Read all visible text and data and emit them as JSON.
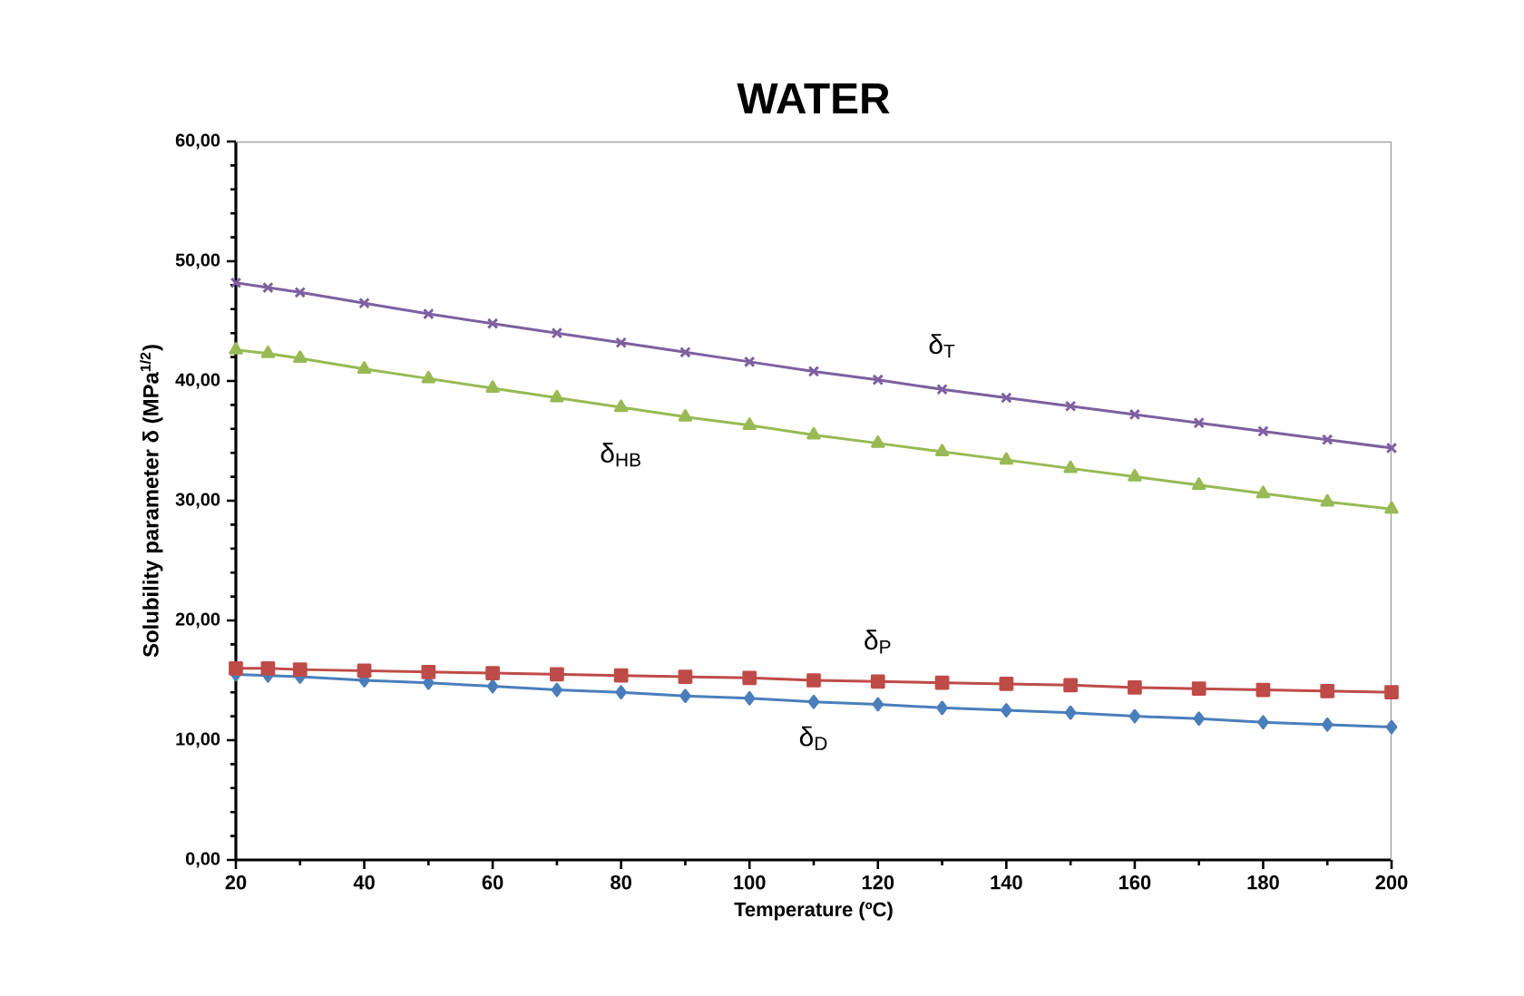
{
  "chart_data": {
    "type": "line",
    "title": "WATER",
    "xlabel": "Temperature (ºC)",
    "ylabel": "Solubility parameter  δ (MPa$^{1/2}$)",
    "x": [
      20,
      25,
      30,
      40,
      50,
      60,
      70,
      80,
      90,
      100,
      110,
      120,
      130,
      140,
      150,
      160,
      170,
      180,
      190,
      200
    ],
    "xlim": [
      20,
      200
    ],
    "xticks": [
      20,
      40,
      60,
      80,
      100,
      120,
      140,
      160,
      180,
      200
    ],
    "ylim": [
      0,
      60
    ],
    "yticks": [
      {
        "value": 0,
        "label": "0,00"
      },
      {
        "value": 10,
        "label": "10,00"
      },
      {
        "value": 20,
        "label": "20,00"
      },
      {
        "value": 30,
        "label": "30,00"
      },
      {
        "value": 40,
        "label": "40,00"
      },
      {
        "value": 50,
        "label": "50,00"
      },
      {
        "value": 60,
        "label": "60,00"
      }
    ],
    "grid": false,
    "line_style": "solid",
    "series": [
      {
        "name": "δ$_{D}$",
        "color": "#4a7ebb",
        "marker": "diamond",
        "values": [
          15.5,
          15.4,
          15.3,
          15.0,
          14.8,
          14.5,
          14.2,
          14.0,
          13.7,
          13.5,
          13.2,
          13.0,
          12.7,
          12.5,
          12.3,
          12.0,
          11.8,
          11.5,
          11.3,
          11.1
        ]
      },
      {
        "name": "δ$_{P}$",
        "color": "#be4b48",
        "marker": "square",
        "values": [
          16.0,
          16.0,
          15.9,
          15.8,
          15.7,
          15.6,
          15.5,
          15.4,
          15.3,
          15.2,
          15.0,
          14.9,
          14.8,
          14.7,
          14.6,
          14.4,
          14.3,
          14.2,
          14.1,
          14.0
        ]
      },
      {
        "name": "δ$_{HB}$",
        "color": "#98b954",
        "marker": "triangle",
        "values": [
          42.6,
          42.3,
          41.9,
          41.0,
          40.2,
          39.4,
          38.6,
          37.8,
          37.0,
          36.3,
          35.5,
          34.8,
          34.1,
          33.4,
          32.7,
          32.0,
          31.3,
          30.6,
          29.9,
          29.3
        ]
      },
      {
        "name": "δ$_{T}$",
        "color": "#7d60a0",
        "marker": "cross",
        "values": [
          48.2,
          47.8,
          47.4,
          46.5,
          45.6,
          44.8,
          44.0,
          43.2,
          42.4,
          41.6,
          40.8,
          40.1,
          39.3,
          38.6,
          37.9,
          37.2,
          36.5,
          35.8,
          35.1,
          34.4
        ]
      }
    ]
  }
}
